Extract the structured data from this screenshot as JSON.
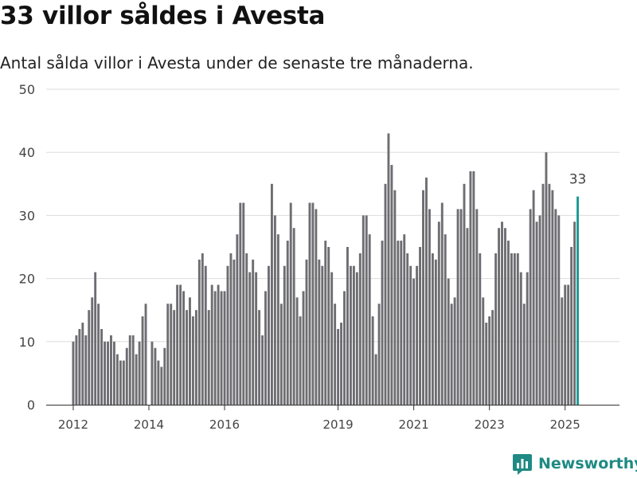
{
  "title": "33 villor såldes i Avesta",
  "subtitle": "Antal sålda villor i Avesta under de senaste tre månaderna.",
  "brand": {
    "name": "Newsworthy",
    "icon": "newsworthy-logo-icon"
  },
  "colors": {
    "bar": "#6e6d72",
    "highlight": "#1a9a91",
    "grid": "#dddddd",
    "text": "#444444",
    "brand": "#1f8a83"
  },
  "chart_data": {
    "type": "bar",
    "title": "33 villor såldes i Avesta",
    "subtitle": "Antal sålda villor i Avesta under de senaste tre månaderna.",
    "xlabel": "",
    "ylabel": "",
    "ylim": [
      0,
      50
    ],
    "yticks": [
      0,
      10,
      20,
      30,
      40,
      50
    ],
    "grid": true,
    "legend": "none",
    "x_start": "2012-01",
    "x_end": "2025-06",
    "xticks": [
      "2012",
      "2014",
      "2016",
      "2019",
      "2021",
      "2023",
      "2025"
    ],
    "values": [
      10,
      11,
      12,
      13,
      11,
      15,
      17,
      21,
      16,
      12,
      10,
      10,
      11,
      10,
      8,
      7,
      7,
      9,
      11,
      11,
      8,
      10,
      14,
      16,
      0,
      10,
      9,
      7,
      6,
      9,
      16,
      16,
      15,
      19,
      19,
      18,
      15,
      17,
      14,
      15,
      23,
      24,
      22,
      15,
      19,
      18,
      19,
      18,
      18,
      22,
      24,
      23,
      27,
      32,
      32,
      24,
      21,
      23,
      21,
      15,
      11,
      18,
      22,
      35,
      30,
      27,
      16,
      22,
      26,
      32,
      28,
      17,
      14,
      18,
      23,
      32,
      32,
      31,
      23,
      22,
      26,
      25,
      21,
      16,
      12,
      13,
      18,
      25,
      22,
      22,
      21,
      24,
      30,
      30,
      27,
      14,
      8,
      16,
      26,
      35,
      43,
      38,
      34,
      26,
      26,
      27,
      24,
      22,
      20,
      22,
      25,
      34,
      36,
      31,
      24,
      23,
      29,
      32,
      27,
      20,
      16,
      17,
      31,
      31,
      35,
      28,
      37,
      37,
      31,
      24,
      17,
      13,
      14,
      15,
      24,
      28,
      29,
      28,
      26,
      24,
      24,
      24,
      21,
      16,
      21,
      31,
      34,
      29,
      30,
      35,
      40,
      35,
      34,
      31,
      30,
      17,
      19,
      19,
      25,
      29,
      33
    ],
    "highlight": {
      "value": 33,
      "label": "33"
    }
  }
}
